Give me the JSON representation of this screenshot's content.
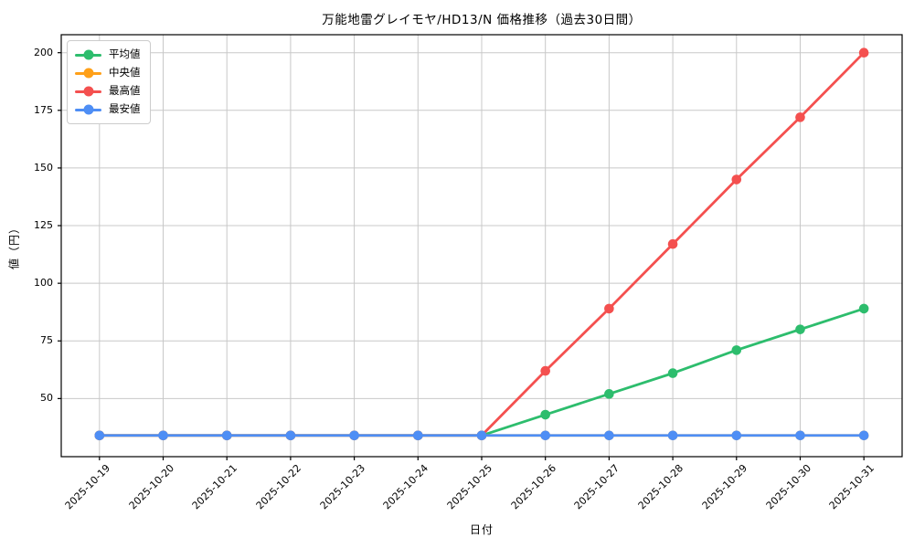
{
  "chart": {
    "title": "万能地雷グレイモヤ/HD13/N 価格推移（過去30日間）",
    "xlabel": "日付",
    "ylabel": "値（円）"
  },
  "chart_data": {
    "type": "line",
    "title": "万能地雷グレイモヤ/HD13/N 価格推移（過去30日間）",
    "xlabel": "日付",
    "ylabel": "値（円）",
    "categories": [
      "2025-10-19",
      "2025-10-20",
      "2025-10-21",
      "2025-10-22",
      "2025-10-23",
      "2025-10-24",
      "2025-10-25",
      "2025-10-26",
      "2025-10-27",
      "2025-10-28",
      "2025-10-29",
      "2025-10-30",
      "2025-10-31"
    ],
    "series": [
      {
        "name": "平均値",
        "key": "average",
        "color": "#2dbd6d",
        "values": [
          34,
          34,
          34,
          34,
          34,
          34,
          34,
          43,
          52,
          61,
          71,
          80,
          89
        ]
      },
      {
        "name": "中央値",
        "key": "median",
        "color": "#ffa018",
        "values": [
          34,
          34,
          34,
          34,
          34,
          34,
          34,
          34,
          34,
          34,
          34,
          34,
          34
        ]
      },
      {
        "name": "最高値",
        "key": "highest",
        "color": "#f4504f",
        "values": [
          34,
          34,
          34,
          34,
          34,
          34,
          34,
          62,
          89,
          117,
          145,
          172,
          200
        ]
      },
      {
        "name": "最安値",
        "key": "lowest",
        "color": "#4e8ef5",
        "values": [
          34,
          34,
          34,
          34,
          34,
          34,
          34,
          34,
          34,
          34,
          34,
          34,
          34
        ]
      }
    ],
    "yticks": [
      50,
      75,
      100,
      125,
      150,
      175,
      200
    ],
    "ylim": [
      24.8,
      207.8
    ],
    "grid": true,
    "legend_position": "upper left"
  },
  "colors": {
    "grid": "#c8c8c8",
    "axis": "#000000",
    "background": "#ffffff",
    "text": "#000000"
  }
}
